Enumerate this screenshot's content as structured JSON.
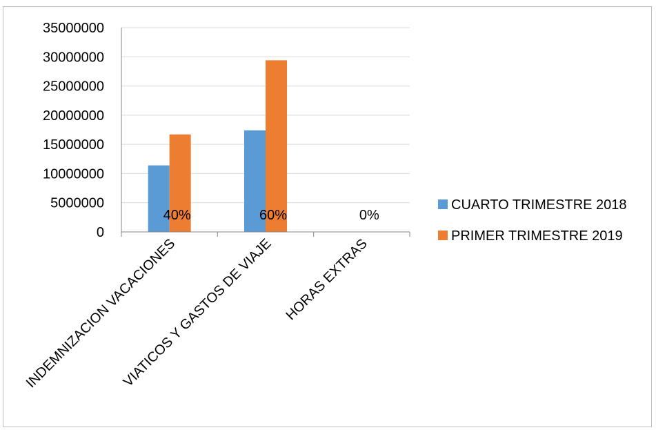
{
  "chart_data": {
    "type": "bar",
    "title": "",
    "xlabel": "",
    "ylabel": "",
    "categories": [
      "INDEMNIZACION VACACIONES",
      "VIATICOS Y GASTOS DE VIAJE",
      "HORAS EXTRAS"
    ],
    "series": [
      {
        "name": "CUARTO TRIMESTRE 2018",
        "color": "#5b9bd5",
        "values": [
          11400000,
          17400000,
          0
        ]
      },
      {
        "name": "PRIMER TRIMESTRE 2019",
        "color": "#ed7d31",
        "values": [
          16700000,
          29400000,
          0
        ]
      }
    ],
    "data_labels": [
      "40%",
      "60%",
      "0%"
    ],
    "ylim": [
      0,
      35000000
    ],
    "yticks": [
      0,
      5000000,
      10000000,
      15000000,
      20000000,
      25000000,
      30000000,
      35000000
    ],
    "ytick_labels": [
      "0",
      "5000000",
      "10000000",
      "15000000",
      "20000000",
      "25000000",
      "30000000",
      "35000000"
    ],
    "grid": true,
    "legend_position": "right"
  }
}
